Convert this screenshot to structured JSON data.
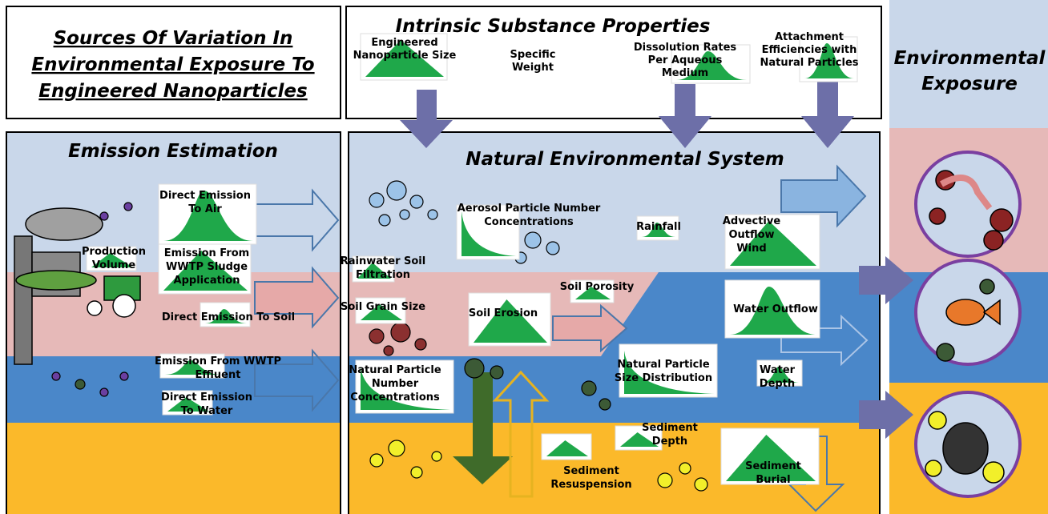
{
  "title": [
    "Sources Of Variation In",
    "Environmental Exposure To",
    "Engineered Nanoparticles"
  ],
  "intrinsic": {
    "title": "Intrinsic Substance Properties",
    "items": [
      [
        "Engineered",
        "Nanoparticle Size"
      ],
      [
        "Specific",
        "Weight"
      ],
      [
        "Dissolution Rates",
        "Per Aqueous",
        "Medium"
      ],
      [
        "Attachment",
        "Efficiencies with",
        "Natural Particles"
      ]
    ]
  },
  "exposure": {
    "title": [
      "Environmental",
      "Exposure"
    ]
  },
  "emission": {
    "title": "Emission Estimation",
    "labels": [
      [
        "Production",
        "Volume"
      ],
      [
        "Direct Emission",
        "To Air"
      ],
      [
        "Emission From",
        "WWTP Sludge",
        "Application"
      ],
      [
        "Direct Emission To Soil"
      ],
      [
        "Emission From WWTP",
        "Effluent"
      ],
      [
        "Direct Emission",
        "To Water"
      ]
    ]
  },
  "natural": {
    "title": "Natural Environmental System",
    "labels": [
      [
        "Aerosol Particle Number",
        "Concentrations"
      ],
      [
        "Rainfall"
      ],
      [
        "Advective",
        "Outflow",
        "Wind"
      ],
      [
        "Rainwater Soil",
        "Filtration"
      ],
      [
        "Soil Porosity"
      ],
      [
        "Soil Grain Size"
      ],
      [
        "Soil Erosion"
      ],
      [
        "Water Outflow"
      ],
      [
        "Natural Particle",
        "Number",
        "Concentrations"
      ],
      [
        "Natural Particle",
        "Size Distribution"
      ],
      [
        "Water",
        "Depth"
      ],
      [
        "Sediment",
        "Depth"
      ],
      [
        "Sediment",
        "Resuspension"
      ],
      [
        "Sediment",
        "Burial"
      ]
    ]
  }
}
